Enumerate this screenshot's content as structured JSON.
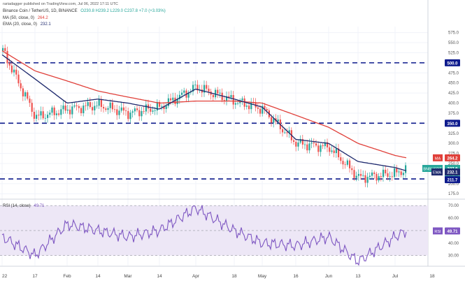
{
  "header": {
    "publisher_line": "rariadagger published on TradingView.com, Jul 06, 2022 17:11 UTC",
    "symbol_line": "Binance Coin / TetherUS, 1D, BINANCE",
    "ohlc": "O230.8 H239.2 L229.0 C237.8 +7.0 (+3.03%)",
    "ma_label": "MA (50, close, 0)",
    "ma_value": "264.2",
    "ema_label": "EMA (20, close, 0)",
    "ema_value": "232.1"
  },
  "price_axis": {
    "ticks": [
      "575.0",
      "550.0",
      "525.0",
      "500.0",
      "475.0",
      "450.0",
      "425.0",
      "400.0",
      "375.0",
      "350.0",
      "325.0",
      "300.0",
      "275.0",
      "250.0",
      "225.0",
      "200.0",
      "175.0"
    ]
  },
  "price_badges": {
    "level_500": "500.0",
    "level_350": "350.0",
    "ma_tag": "MA",
    "ma": "264.2",
    "symbol": "BNBUSDT",
    "last": "237.8",
    "countdown": "06:48:40",
    "ema_tag": "EMA",
    "ema": "232.1",
    "support": "211.7"
  },
  "rsi": {
    "label": "RSI (14, close)",
    "value": "49.71",
    "axis_ticks": [
      "70.00",
      "60.00",
      "40.00",
      "30.00"
    ],
    "badge_tag": "RSI",
    "badge_value": "49.71"
  },
  "time_axis": {
    "labels": [
      "22",
      "17",
      "Feb",
      "14",
      "Mar",
      "14",
      "Apr",
      "18",
      "May",
      "16",
      "Jun",
      "13",
      "Jul",
      "18"
    ]
  },
  "colors": {
    "bull": "#26a69a",
    "bear": "#ef5350",
    "ma": "#e0403a",
    "ema": "#1f2a6e",
    "levels": "#0d1a8c",
    "rsi": "#7e57c2",
    "rsi_band": "#ede7f6"
  },
  "chart_data": {
    "type": "candlestick",
    "series": [
      {
        "name": "MA (50, close, 0)",
        "x": [
          "Jan 1",
          "Jan 17",
          "Feb 1",
          "Feb 14",
          "Mar 1",
          "Mar 14",
          "Apr 1",
          "Apr 18",
          "May 1",
          "May 16",
          "Jun 1",
          "Jun 13",
          "Jul 1",
          "Jul 6"
        ],
        "values": [
          530,
          480,
          455,
          430,
          415,
          400,
          405,
          405,
          400,
          370,
          340,
          300,
          270,
          264.2
        ]
      },
      {
        "name": "EMA (20, close, 0)",
        "x": [
          "Jan 1",
          "Jan 17",
          "Feb 1",
          "Feb 14",
          "Mar 1",
          "Mar 14",
          "Apr 1",
          "Apr 18",
          "May 1",
          "May 16",
          "Jun 1",
          "Jun 13",
          "Jul 1",
          "Jul 6"
        ],
        "values": [
          520,
          460,
          400,
          410,
          400,
          385,
          435,
          410,
          390,
          310,
          300,
          255,
          240,
          232.1
        ]
      },
      {
        "name": "Close",
        "x": [
          "Jan 1",
          "Jan 17",
          "Feb 1",
          "Feb 14",
          "Mar 1",
          "Mar 14",
          "Apr 1",
          "Apr 18",
          "May 1",
          "May 16",
          "Jun 1",
          "Jun 13",
          "Jul 1",
          "Jul 6"
        ],
        "values": [
          530,
          365,
          385,
          395,
          375,
          390,
          440,
          405,
          385,
          300,
          290,
          215,
          225,
          237.8
        ]
      },
      {
        "name": "RSI (14, close)",
        "x": [
          "Jan 1",
          "Jan 17",
          "Feb 1",
          "Feb 14",
          "Mar 1",
          "Mar 14",
          "Apr 1",
          "Apr 18",
          "May 1",
          "May 16",
          "Jun 1",
          "Jun 13",
          "Jul 1",
          "Jul 6"
        ],
        "values": [
          45,
          30,
          55,
          50,
          45,
          50,
          68,
          50,
          40,
          38,
          45,
          25,
          45,
          49.71
        ]
      }
    ],
    "horizontal_lines": [
      500.0,
      350.0,
      232.1,
      211.7
    ],
    "ylim": [
      165,
      590
    ],
    "rsi_ylim": [
      22,
      74
    ],
    "rsi_band": [
      30,
      70
    ],
    "grid": true
  }
}
